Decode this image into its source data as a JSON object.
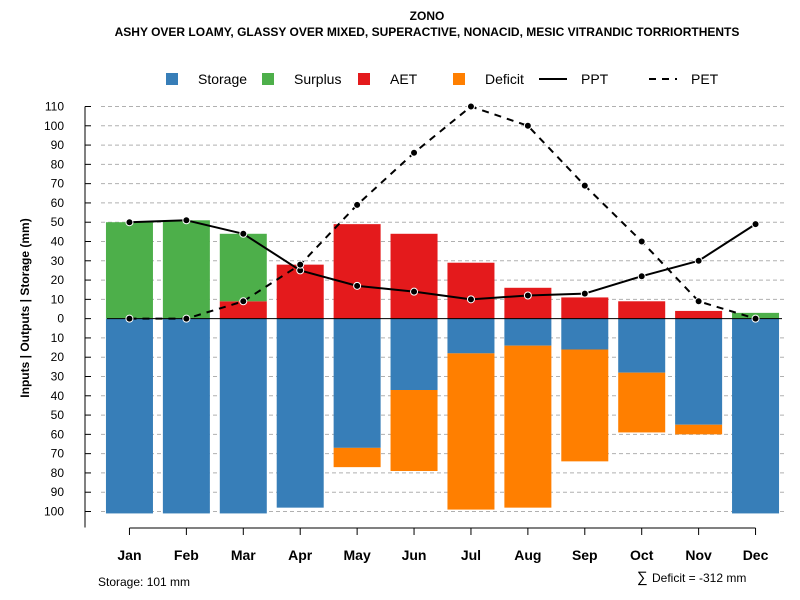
{
  "chart_data": {
    "type": "bar",
    "title": "ZONO",
    "subtitle": "ASHY OVER LOAMY, GLASSY OVER MIXED, SUPERACTIVE, NONACID, MESIC VITRANDIC TORRIORTHENTS",
    "ylabel": "Inputs | Outputs | Storage    (mm)",
    "ylim": [
      -100,
      110
    ],
    "grid": true,
    "legend_position": "top",
    "categories": [
      "Jan",
      "Feb",
      "Mar",
      "Apr",
      "May",
      "Jun",
      "Jul",
      "Aug",
      "Sep",
      "Oct",
      "Nov",
      "Dec"
    ],
    "y_ticks": [
      110,
      100,
      90,
      80,
      70,
      60,
      50,
      40,
      30,
      20,
      10,
      0,
      -10,
      -20,
      -30,
      -40,
      -50,
      -60,
      -70,
      -80,
      -90,
      -100
    ],
    "y_tick_labels": [
      "110",
      "100",
      "90",
      "80",
      "70",
      "60",
      "50",
      "40",
      "30",
      "20",
      "10",
      "0",
      "10",
      "20",
      "30",
      "40",
      "50",
      "60",
      "70",
      "80",
      "90",
      "100"
    ],
    "legend": [
      {
        "label": "Storage",
        "kind": "box",
        "color": "#377EB8"
      },
      {
        "label": "Surplus",
        "kind": "box",
        "color": "#4DAF4A"
      },
      {
        "label": "AET",
        "kind": "box",
        "color": "#E41A1C"
      },
      {
        "label": "Deficit",
        "kind": "box",
        "color": "#FF7F00"
      },
      {
        "label": "PPT",
        "kind": "line-solid",
        "color": "#000000"
      },
      {
        "label": "PET",
        "kind": "line-dashed",
        "color": "#000000"
      }
    ],
    "series": [
      {
        "name": "Storage",
        "color": "#377EB8",
        "direction": "down",
        "values": [
          101,
          101,
          101,
          98,
          67,
          37,
          18,
          14,
          16,
          28,
          55,
          101
        ]
      },
      {
        "name": "Deficit",
        "color": "#FF7F00",
        "direction": "down",
        "values": [
          0,
          0,
          0,
          0,
          10,
          42,
          81,
          84,
          58,
          31,
          5,
          0
        ]
      },
      {
        "name": "AET",
        "color": "#E41A1C",
        "direction": "up",
        "values": [
          0,
          0,
          9,
          28,
          49,
          44,
          29,
          16,
          11,
          9,
          4,
          0
        ]
      },
      {
        "name": "Surplus",
        "color": "#4DAF4A",
        "direction": "up",
        "values": [
          50,
          51,
          35,
          0,
          0,
          0,
          0,
          0,
          0,
          0,
          0,
          3
        ]
      },
      {
        "name": "PPT",
        "color": "#000000",
        "style": "solid",
        "values": [
          50,
          51,
          44,
          25,
          17,
          14,
          10,
          12,
          13,
          22,
          30,
          49
        ]
      },
      {
        "name": "PET",
        "color": "#000000",
        "style": "dashed",
        "values": [
          0,
          0,
          9,
          28,
          59,
          86,
          110,
          100,
          69,
          40,
          9,
          0
        ]
      }
    ],
    "footer_left": "Storage: 101 mm",
    "footer_right_symbol": "∑",
    "footer_right": "Deficit = -312 mm"
  }
}
